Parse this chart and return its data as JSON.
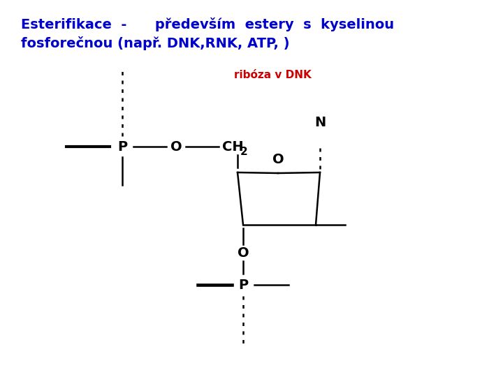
{
  "title_line1": "Esterifikace  -      především  estery  s  kyselinou",
  "title_line2": "fosforečnou (např. DNK,RNK, ATP, )",
  "title_color": "#0000CC",
  "title_fontsize": 14,
  "annotation_text": "ribóza v DNK",
  "annotation_color": "#CC0000",
  "annotation_fontsize": 11,
  "bg_color": "#ffffff",
  "line_color": "#000000",
  "label_fontsize": 12
}
